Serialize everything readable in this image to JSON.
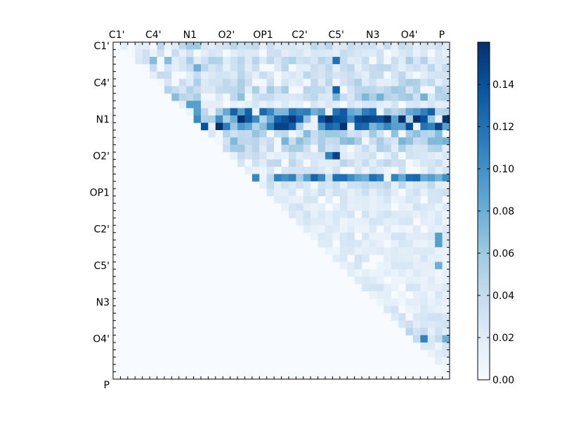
{
  "chart_data": {
    "type": "heatmap",
    "x_tick_labels": [
      "C1'",
      "C4'",
      "N1",
      "O2'",
      "OP1",
      "C2'",
      "C5'",
      "N3",
      "O4'",
      "P"
    ],
    "y_tick_labels": [
      "C1'",
      "C4'",
      "N1",
      "O2'",
      "OP1",
      "C2'",
      "C5'",
      "N3",
      "O4'",
      "P"
    ],
    "colormap": "Blues",
    "colorbar": {
      "range": [
        0.0,
        0.16
      ],
      "tick_labels": [
        "0.00",
        "0.02",
        "0.04",
        "0.06",
        "0.08",
        "0.10",
        "0.12",
        "0.14"
      ]
    },
    "grid": false,
    "legend": "colorbar-right",
    "matrix_size": 46,
    "triangle": "upper",
    "row_profiles": [
      {
        "row": 0,
        "level": 0.03
      },
      {
        "row": 1,
        "level": 0.025
      },
      {
        "row": 2,
        "level": 0.035
      },
      {
        "row": 3,
        "level": 0.03
      },
      {
        "row": 4,
        "level": 0.03
      },
      {
        "row": 5,
        "level": 0.035
      },
      {
        "row": 6,
        "level": 0.04
      },
      {
        "row": 7,
        "level": 0.05
      },
      {
        "row": 8,
        "level": 0.02
      },
      {
        "row": 9,
        "level": 0.09
      },
      {
        "row": 10,
        "level": 0.115
      },
      {
        "row": 11,
        "level": 0.11
      },
      {
        "row": 12,
        "level": 0.045
      },
      {
        "row": 13,
        "level": 0.05
      },
      {
        "row": 14,
        "level": 0.04
      },
      {
        "row": 15,
        "level": 0.025
      },
      {
        "row": 16,
        "level": 0.03
      },
      {
        "row": 17,
        "level": 0.02
      },
      {
        "row": 18,
        "level": 0.085
      },
      {
        "row": 19,
        "level": 0.03
      },
      {
        "row": 20,
        "level": 0.025
      },
      {
        "row": 21,
        "level": 0.02
      },
      {
        "row": 22,
        "level": 0.02
      },
      {
        "row": 23,
        "level": 0.02
      },
      {
        "row": 24,
        "level": 0.02
      },
      {
        "row": 25,
        "level": 0.015
      },
      {
        "row": 26,
        "level": 0.02
      },
      {
        "row": 27,
        "level": 0.02
      },
      {
        "row": 28,
        "level": 0.015
      },
      {
        "row": 29,
        "level": 0.02
      },
      {
        "row": 30,
        "level": 0.02
      },
      {
        "row": 31,
        "level": 0.015
      },
      {
        "row": 32,
        "level": 0.015
      },
      {
        "row": 33,
        "level": 0.02
      },
      {
        "row": 34,
        "level": 0.02
      },
      {
        "row": 35,
        "level": 0.015
      },
      {
        "row": 36,
        "level": 0.02
      },
      {
        "row": 37,
        "level": 0.025
      },
      {
        "row": 38,
        "level": 0.025
      },
      {
        "row": 39,
        "level": 0.03
      },
      {
        "row": 40,
        "level": 0.03
      },
      {
        "row": 41,
        "level": 0.02
      },
      {
        "row": 42,
        "level": 0.02
      },
      {
        "row": 43,
        "level": 0.01
      },
      {
        "row": 44,
        "level": 0.005
      },
      {
        "row": 45,
        "level": 0.0
      }
    ],
    "hot_cells": [
      [
        10,
        24,
        0.155
      ],
      [
        10,
        23,
        0.14
      ],
      [
        10,
        34,
        0.15
      ],
      [
        10,
        35,
        0.145
      ],
      [
        10,
        36,
        0.14
      ],
      [
        10,
        30,
        0.14
      ],
      [
        10,
        31,
        0.135
      ],
      [
        10,
        28,
        0.14
      ],
      [
        10,
        25,
        0.13
      ],
      [
        10,
        22,
        0.13
      ],
      [
        9,
        24,
        0.12
      ],
      [
        9,
        30,
        0.12
      ],
      [
        11,
        24,
        0.13
      ],
      [
        11,
        30,
        0.12
      ],
      [
        11,
        34,
        0.125
      ],
      [
        15,
        30,
        0.15
      ],
      [
        15,
        29,
        0.11
      ],
      [
        2,
        30,
        0.12
      ],
      [
        6,
        30,
        0.13
      ],
      [
        18,
        30,
        0.12
      ],
      [
        18,
        24,
        0.11
      ],
      [
        18,
        38,
        0.11
      ],
      [
        11,
        43,
        0.11
      ],
      [
        11,
        45,
        0.09
      ],
      [
        40,
        42,
        0.11
      ],
      [
        40,
        45,
        0.08
      ],
      [
        26,
        44,
        0.09
      ],
      [
        27,
        44,
        0.09
      ],
      [
        30,
        44,
        0.08
      ],
      [
        8,
        10,
        0.09
      ],
      [
        8,
        11,
        0.09
      ],
      [
        3,
        11,
        0.08
      ],
      [
        2,
        5,
        0.07
      ],
      [
        2,
        7,
        0.07
      ],
      [
        0,
        10,
        0.06
      ],
      [
        0,
        11,
        0.06
      ]
    ]
  }
}
